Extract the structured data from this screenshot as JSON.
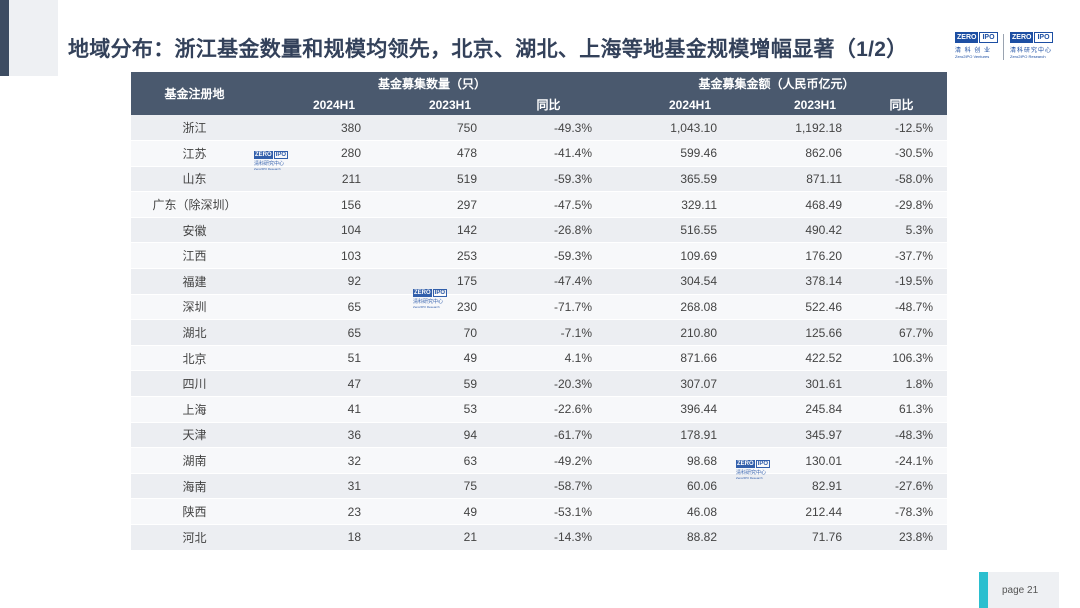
{
  "title": "地域分布：浙江基金数量和规模均领先，北京、湖北、上海等地基金规模增幅显著（1/2）",
  "logos": {
    "zero": "ZERO",
    "ipo": "IPO",
    "left_zh": "清 科 创 业",
    "left_en": "Zero2IPO Ventures",
    "right_zh": "清科研究中心",
    "right_en": "Zero2IPO Research"
  },
  "watermark": {
    "zero": "ZERO",
    "ipo": "IPO",
    "zh": "清科研究中心",
    "en": "Zero2IPO Research"
  },
  "table": {
    "header_region": "基金注册地",
    "group_count": "基金募集数量（只）",
    "group_amount": "基金募集金额（人民币亿元）",
    "sub_count_2024": "2024H1",
    "sub_count_2023": "2023H1",
    "sub_count_yoy": "同比",
    "sub_amount_2024": "2024H1",
    "sub_amount_2023": "2023H1",
    "sub_amount_yoy": "同比",
    "rows": [
      {
        "region": "浙江",
        "c24": "380",
        "c23": "750",
        "cyoy": "-49.3%",
        "a24": "1,043.10",
        "a23": "1,192.18",
        "ayoy": "-12.5%"
      },
      {
        "region": "江苏",
        "c24": "280",
        "c23": "478",
        "cyoy": "-41.4%",
        "a24": "599.46",
        "a23": "862.06",
        "ayoy": "-30.5%"
      },
      {
        "region": "山东",
        "c24": "211",
        "c23": "519",
        "cyoy": "-59.3%",
        "a24": "365.59",
        "a23": "871.11",
        "ayoy": "-58.0%"
      },
      {
        "region": "广东（除深圳）",
        "c24": "156",
        "c23": "297",
        "cyoy": "-47.5%",
        "a24": "329.11",
        "a23": "468.49",
        "ayoy": "-29.8%"
      },
      {
        "region": "安徽",
        "c24": "104",
        "c23": "142",
        "cyoy": "-26.8%",
        "a24": "516.55",
        "a23": "490.42",
        "ayoy": "5.3%"
      },
      {
        "region": "江西",
        "c24": "103",
        "c23": "253",
        "cyoy": "-59.3%",
        "a24": "109.69",
        "a23": "176.20",
        "ayoy": "-37.7%"
      },
      {
        "region": "福建",
        "c24": "92",
        "c23": "175",
        "cyoy": "-47.4%",
        "a24": "304.54",
        "a23": "378.14",
        "ayoy": "-19.5%"
      },
      {
        "region": "深圳",
        "c24": "65",
        "c23": "230",
        "cyoy": "-71.7%",
        "a24": "268.08",
        "a23": "522.46",
        "ayoy": "-48.7%"
      },
      {
        "region": "湖北",
        "c24": "65",
        "c23": "70",
        "cyoy": "-7.1%",
        "a24": "210.80",
        "a23": "125.66",
        "ayoy": "67.7%"
      },
      {
        "region": "北京",
        "c24": "51",
        "c23": "49",
        "cyoy": "4.1%",
        "a24": "871.66",
        "a23": "422.52",
        "ayoy": "106.3%"
      },
      {
        "region": "四川",
        "c24": "47",
        "c23": "59",
        "cyoy": "-20.3%",
        "a24": "307.07",
        "a23": "301.61",
        "ayoy": "1.8%"
      },
      {
        "region": "上海",
        "c24": "41",
        "c23": "53",
        "cyoy": "-22.6%",
        "a24": "396.44",
        "a23": "245.84",
        "ayoy": "61.3%"
      },
      {
        "region": "天津",
        "c24": "36",
        "c23": "94",
        "cyoy": "-61.7%",
        "a24": "178.91",
        "a23": "345.97",
        "ayoy": "-48.3%"
      },
      {
        "region": "湖南",
        "c24": "32",
        "c23": "63",
        "cyoy": "-49.2%",
        "a24": "98.68",
        "a23": "130.01",
        "ayoy": "-24.1%"
      },
      {
        "region": "海南",
        "c24": "31",
        "c23": "75",
        "cyoy": "-58.7%",
        "a24": "60.06",
        "a23": "82.91",
        "ayoy": "-27.6%"
      },
      {
        "region": "陕西",
        "c24": "23",
        "c23": "49",
        "cyoy": "-53.1%",
        "a24": "46.08",
        "a23": "212.44",
        "ayoy": "-78.3%"
      },
      {
        "region": "河北",
        "c24": "18",
        "c23": "21",
        "cyoy": "-14.3%",
        "a24": "88.82",
        "a23": "71.76",
        "ayoy": "23.8%"
      }
    ]
  },
  "page_label": "page  21",
  "colors": {
    "header_bg": "#4a596e",
    "title": "#33415a",
    "accent": "#2bbfcf",
    "logo_blue": "#1d4fa3"
  }
}
